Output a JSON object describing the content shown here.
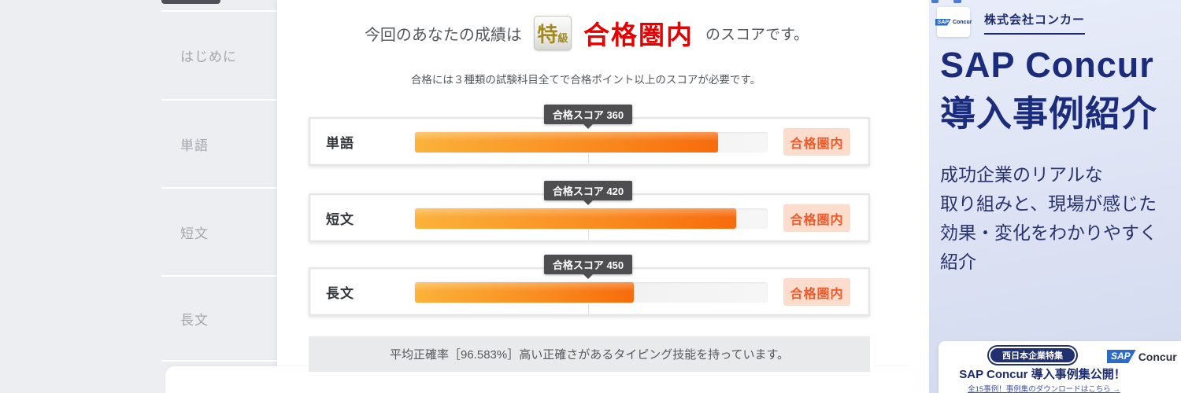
{
  "sidebar": {
    "items": [
      {
        "label": "はじめに"
      },
      {
        "label": "単語"
      },
      {
        "label": "短文"
      },
      {
        "label": "長文"
      }
    ]
  },
  "result": {
    "heading_prefix": "今回のあなたの成績は",
    "grade_badge": {
      "main": "特",
      "sub": "級"
    },
    "highlight": "合格圏内",
    "heading_suffix": "のスコアです。",
    "note": "合格には３種類の試験科目全てで合格ポイント以上のスコアが必要です。",
    "rows": [
      {
        "label": "単語",
        "tooltip": "合格スコア 360",
        "pass_score": 360,
        "fill_percent": 86,
        "status": "合格圏内"
      },
      {
        "label": "短文",
        "tooltip": "合格スコア 420",
        "pass_score": 420,
        "fill_percent": 91,
        "status": "合格圏内"
      },
      {
        "label": "長文",
        "tooltip": "合格スコア 450",
        "pass_score": 450,
        "fill_percent": 62,
        "status": "合格圏内"
      }
    ],
    "summary": "平均正確率［96.583%］高い正確さがあるタイピング技能を持っています。"
  },
  "ad": {
    "company": "株式会社コンカー",
    "title_line1": "SAP Concur",
    "title_line2": "導入事例紹介",
    "body_lines": {
      "0": "成功企業のリアルな",
      "1": "取り組みと、現場が感じた",
      "2": "効果・変化をわかりやすく",
      "3": "紹介"
    },
    "logo": {
      "sap": "SAP",
      "concur": "Concur"
    },
    "banner": {
      "tag": "西日本企業特集",
      "headline": "SAP Concur 導入事例集公開！",
      "link": "全15事例！事例集のダウンロードはこちら →"
    }
  },
  "colors": {
    "bar_gradient_start": "#fbb23a",
    "bar_gradient_end": "#f76b0c",
    "highlight_red": "#e60000",
    "status_badge_bg": "#fbdccd",
    "status_badge_text": "#f15a28",
    "tooltip_bg": "#4e4e50",
    "ad_navy": "#1b2c7d",
    "page_bg": "#edeef1"
  }
}
